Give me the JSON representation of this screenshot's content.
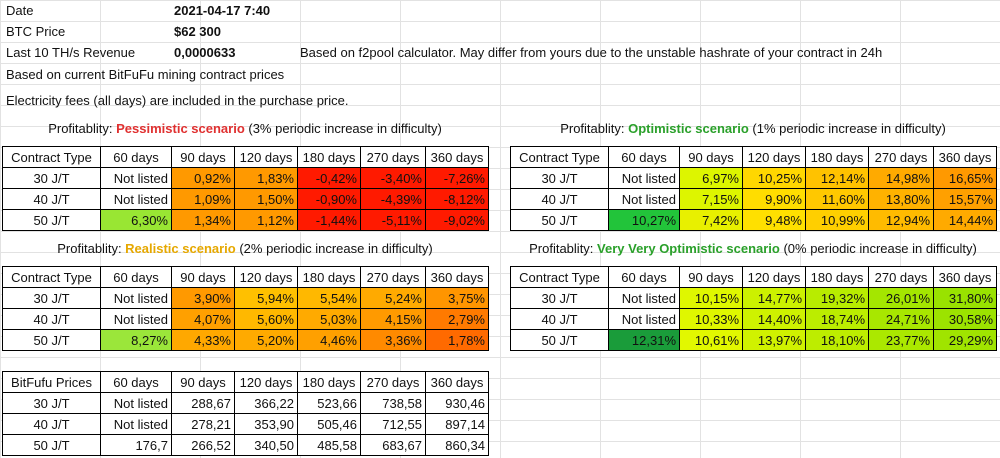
{
  "header": {
    "date_label": "Date",
    "date_value": "2021-04-17 7:40",
    "btc_label": "BTC Price",
    "btc_value": "$62 300",
    "rev_label": "Last 10 TH/s Revenue",
    "rev_value": "0,0000633",
    "rev_note": "Based on f2pool calculator. May differ from yours due to the unstable hashrate of your contract in 24h",
    "note1": "Based on current BitFuFu mining contract prices",
    "note2": "Electricity fees (all days) are included in the purchase price."
  },
  "columns": [
    "60 days",
    "90 days",
    "120 days",
    "180 days",
    "270 days",
    "360 days"
  ],
  "row_labels": [
    "30 J/T",
    "40 J/T",
    "50 J/T"
  ],
  "scenarios": {
    "pessimistic": {
      "prefix": "Profitablity: ",
      "name": "Pessimistic scenario",
      "suffix": " (3% periodic increase in difficulty)",
      "first_header": "Contract Type",
      "rows": [
        [
          "Not listed",
          "0,92%",
          "1,83%",
          "-0,42%",
          "-3,40%",
          "-7,26%"
        ],
        [
          "Not listed",
          "1,09%",
          "1,50%",
          "-0,90%",
          "-4,39%",
          "-8,12%"
        ],
        [
          "6,30%",
          "1,34%",
          "1,12%",
          "-1,44%",
          "-5,11%",
          "-9,02%"
        ]
      ],
      "colors": [
        [
          "#ffffff",
          "#ff9900",
          "#ff9900",
          "#ff1a00",
          "#ff1a00",
          "#ff1a00"
        ],
        [
          "#ffffff",
          "#ff9900",
          "#ff9900",
          "#ff1a00",
          "#ff1a00",
          "#ff1a00"
        ],
        [
          "#99e633",
          "#ff9900",
          "#ff9900",
          "#ff1a00",
          "#ff1a00",
          "#ff1a00"
        ]
      ]
    },
    "optimistic": {
      "prefix": "Profitablity: ",
      "name": "Optimistic scenario",
      "suffix": " (1% periodic increase in difficulty)",
      "first_header": "Contract Type",
      "rows": [
        [
          "Not listed",
          "6,97%",
          "10,25%",
          "12,14%",
          "14,98%",
          "16,65%"
        ],
        [
          "Not listed",
          "7,15%",
          "9,90%",
          "11,60%",
          "13,80%",
          "15,57%"
        ],
        [
          "10,27%",
          "7,42%",
          "9,48%",
          "10,99%",
          "12,94%",
          "14,44%"
        ]
      ],
      "colors": [
        [
          "#ffffff",
          "#ddf500",
          "#ffd700",
          "#ffc200",
          "#ffaa00",
          "#ff9900"
        ],
        [
          "#ffffff",
          "#ddf500",
          "#ffdd00",
          "#ffc800",
          "#ffb200",
          "#ffa000"
        ],
        [
          "#22c43a",
          "#e8f000",
          "#ffe000",
          "#ffcf00",
          "#ffbb00",
          "#ffaa00"
        ]
      ]
    },
    "realistic": {
      "prefix": "Profitablity: ",
      "name": "Realistic scenario",
      "suffix": " (2% periodic increase in difficulty)",
      "first_header": "Contract Type",
      "rows": [
        [
          "Not listed",
          "3,90%",
          "5,94%",
          "5,54%",
          "5,24%",
          "3,75%"
        ],
        [
          "Not listed",
          "4,07%",
          "5,60%",
          "5,03%",
          "4,15%",
          "2,79%"
        ],
        [
          "8,27%",
          "4,33%",
          "5,20%",
          "4,46%",
          "3,36%",
          "1,78%"
        ]
      ],
      "colors": [
        [
          "#ffffff",
          "#ff9900",
          "#ffc000",
          "#ffb800",
          "#ffaa00",
          "#ff9500"
        ],
        [
          "#ffffff",
          "#ffa000",
          "#ffb800",
          "#ffaa00",
          "#ff9a00",
          "#ff7a00"
        ],
        [
          "#9be63a",
          "#ffa800",
          "#ffaa00",
          "#ffa000",
          "#ff8a00",
          "#ff6a00"
        ]
      ]
    },
    "very_optimistic": {
      "prefix": "Profitablity: ",
      "name": "Very Very Optimistic scenario",
      "suffix": " (0% periodic increase in difficulty)",
      "first_header": "Contract Type",
      "rows": [
        [
          "Not listed",
          "10,15%",
          "14,77%",
          "19,32%",
          "26,01%",
          "31,80%"
        ],
        [
          "Not listed",
          "10,33%",
          "14,40%",
          "18,74%",
          "24,71%",
          "30,58%"
        ],
        [
          "12,31%",
          "10,61%",
          "13,97%",
          "18,10%",
          "23,77%",
          "29,29%"
        ]
      ],
      "colors": [
        [
          "#ffffff",
          "#dff700",
          "#ccf100",
          "#b8ec00",
          "#a4e600",
          "#99e200"
        ],
        [
          "#ffffff",
          "#dff700",
          "#cef200",
          "#bbed00",
          "#a8e700",
          "#9ce300"
        ],
        [
          "#1a9c3a",
          "#e2f800",
          "#d0f200",
          "#bded00",
          "#abe800",
          "#a0e400"
        ]
      ]
    }
  },
  "prices": {
    "first_header": "BitFufu Prices",
    "rows": [
      [
        "Not listed",
        "288,67",
        "366,22",
        "523,66",
        "738,58",
        "930,46"
      ],
      [
        "Not listed",
        "278,21",
        "353,90",
        "505,46",
        "712,55",
        "897,14"
      ],
      [
        "176,7",
        "266,52",
        "340,50",
        "485,58",
        "683,67",
        "860,34"
      ]
    ]
  }
}
